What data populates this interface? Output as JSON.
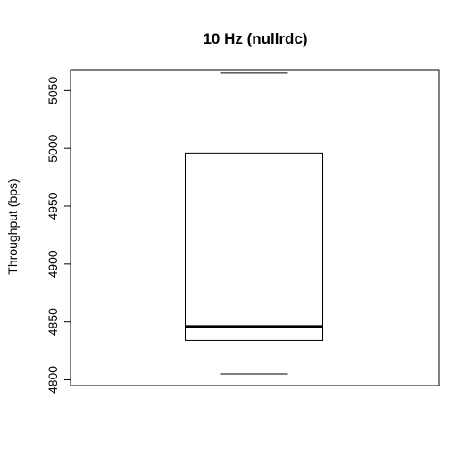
{
  "chart_data": {
    "type": "boxplot",
    "title": "10 Hz (nullrdc)",
    "xlabel": "",
    "ylabel": "Throughput (bps)",
    "ylim": [
      4795,
      5068
    ],
    "y_ticks": [
      4800,
      4850,
      4900,
      4950,
      5000,
      5050
    ],
    "y_tick_labels": [
      "4800",
      "4850",
      "4900",
      "4950",
      "5000",
      "5050"
    ],
    "grid": false,
    "legend": "none",
    "series": [
      {
        "whisker_low": 4805,
        "q1": 4834,
        "median": 4846,
        "q3": 4996,
        "whisker_high": 5065
      }
    ]
  }
}
